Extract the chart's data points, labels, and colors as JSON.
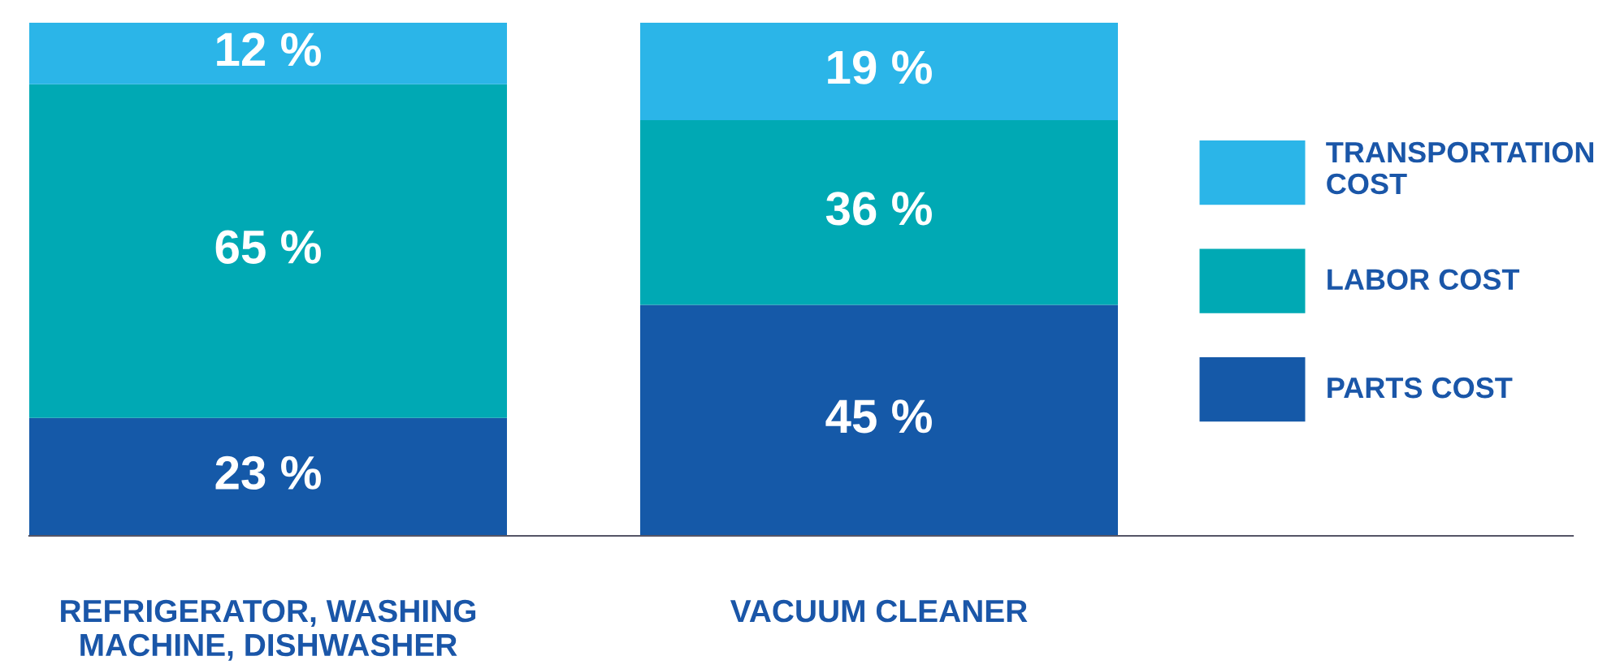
{
  "chart_data": {
    "type": "bar",
    "stacked": true,
    "categories": [
      "REFRIGERATOR, WASHING\nMACHINE, DISHWASHER",
      "VACUUM CLEANER"
    ],
    "series": [
      {
        "name": "PARTS COST",
        "color": "#1559a8",
        "values": [
          23,
          45
        ],
        "value_labels": [
          "23 %",
          "45 %"
        ]
      },
      {
        "name": "LABOR COST",
        "color": "#00a9b4",
        "values": [
          65,
          36
        ],
        "value_labels": [
          "65 %",
          "36 %"
        ]
      },
      {
        "name": "TRANSPORTATION\nCOST",
        "color": "#2bb5e8",
        "values": [
          12,
          19
        ],
        "value_labels": [
          "12 %",
          "19 %"
        ]
      }
    ],
    "ylim": [
      0,
      100
    ],
    "tick_labels": "x",
    "legend": "right",
    "grid": false
  }
}
